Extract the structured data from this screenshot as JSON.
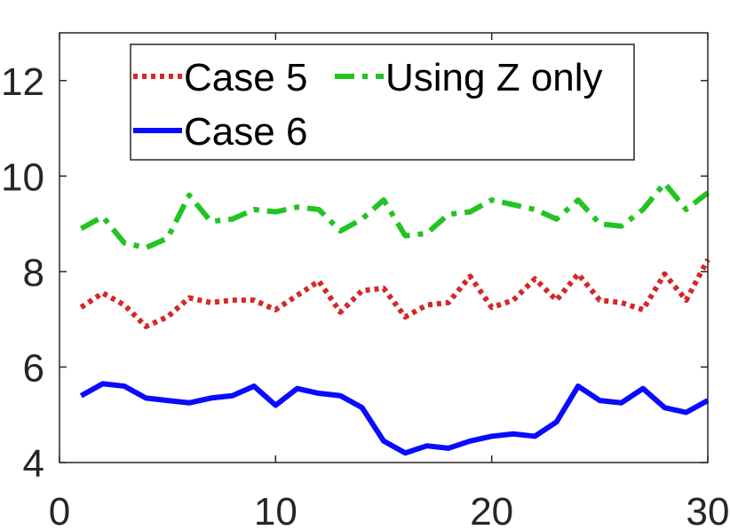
{
  "chart_data": {
    "type": "line",
    "title": "",
    "xlabel": "",
    "ylabel": "",
    "xlim": [
      0,
      30
    ],
    "ylim": [
      4,
      13
    ],
    "xticks": [
      0,
      10,
      20,
      30
    ],
    "yticks": [
      4,
      6,
      8,
      10,
      12
    ],
    "x": [
      1,
      2,
      3,
      4,
      5,
      6,
      7,
      8,
      9,
      10,
      11,
      12,
      13,
      14,
      15,
      16,
      17,
      18,
      19,
      20,
      21,
      22,
      23,
      24,
      25,
      26,
      27,
      28,
      29,
      30
    ],
    "series": [
      {
        "name": "Case 5",
        "color": "#d62728",
        "style": "dotted",
        "values": [
          7.25,
          7.55,
          7.3,
          6.85,
          7.05,
          7.45,
          7.35,
          7.4,
          7.4,
          7.2,
          7.5,
          7.8,
          7.15,
          7.6,
          7.65,
          7.05,
          7.3,
          7.35,
          7.9,
          7.25,
          7.4,
          7.85,
          7.4,
          7.95,
          7.4,
          7.35,
          7.2,
          7.95,
          7.4,
          8.25
        ]
      },
      {
        "name": "Using Z only",
        "color": "#22c422",
        "style": "dashdot",
        "values": [
          8.9,
          9.15,
          8.6,
          8.5,
          8.7,
          9.6,
          9.05,
          9.1,
          9.3,
          9.25,
          9.35,
          9.3,
          8.85,
          9.1,
          9.5,
          8.75,
          8.8,
          9.2,
          9.25,
          9.5,
          9.4,
          9.3,
          9.1,
          9.5,
          9.0,
          8.95,
          9.3,
          9.85,
          9.3,
          9.65
        ]
      },
      {
        "name": "Case 6",
        "color": "#0a0aff",
        "style": "solid",
        "values": [
          5.4,
          5.65,
          5.6,
          5.35,
          5.3,
          5.25,
          5.35,
          5.4,
          5.6,
          5.2,
          5.55,
          5.45,
          5.4,
          5.15,
          4.45,
          4.2,
          4.35,
          4.3,
          4.45,
          4.55,
          4.6,
          4.55,
          4.85,
          5.6,
          5.3,
          5.25,
          5.55,
          5.15,
          5.05,
          5.3
        ]
      }
    ],
    "grid": false,
    "legend_position": "top"
  }
}
